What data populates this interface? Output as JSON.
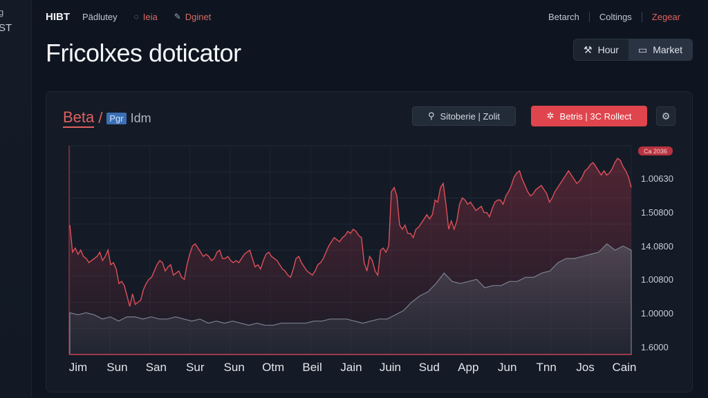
{
  "side": {
    "line1": "g",
    "line2": "ST"
  },
  "nav": {
    "brand": "HIBT",
    "links": [
      {
        "label": "Pädlutey",
        "icon": ""
      },
      {
        "label": "Ieia",
        "icon": "bubble-icon"
      },
      {
        "label": "Dginet",
        "icon": "pencil-icon"
      }
    ],
    "right": [
      {
        "label": "Betarch",
        "accent": false
      },
      {
        "label": "Coltings",
        "accent": false
      },
      {
        "label": "Zegear",
        "accent": true
      }
    ]
  },
  "page": {
    "title": "Fricolxes doticator"
  },
  "toggle": {
    "options": [
      {
        "label": "Hour",
        "icon": "tools-icon",
        "active": false
      },
      {
        "label": "Market",
        "icon": "card-icon",
        "active": true
      }
    ]
  },
  "panel": {
    "title_beta": "Beta",
    "title_sep": "/",
    "title_chip": "Pgr",
    "title_tail": "Idm",
    "btn_secondary": "Sitoberie | Zolit",
    "btn_primary": "Betris | 3C Rollect",
    "colors": {
      "accent": "#e0454d",
      "line": "#e0505a",
      "area": "#6b7280"
    }
  },
  "chart_data": {
    "type": "area",
    "x_labels": [
      "Jim",
      "Sun",
      "San",
      "Sur",
      "Sun",
      "Otm",
      "Beil",
      "Jain",
      "Juin",
      "Sud",
      "App",
      "Jun",
      "Tnn",
      "Jos",
      "Cain"
    ],
    "y_labels": [
      "1.00630",
      "1.50800",
      "14.0800",
      "1.00800",
      "1.00000",
      "1.6000"
    ],
    "price_tag": "Ca 2036",
    "series": [
      {
        "color": "#e0505a",
        "values": [
          62,
          49,
          51,
          48,
          50,
          47,
          46,
          44,
          45,
          46,
          47,
          49,
          45,
          47,
          50,
          43,
          44,
          41,
          34,
          35,
          33,
          28,
          23,
          29,
          24,
          25,
          26,
          31,
          34,
          36,
          37,
          40,
          43,
          45,
          44,
          40,
          42,
          43,
          38,
          39,
          40,
          37,
          36,
          43,
          48,
          52,
          53,
          51,
          49,
          47,
          48,
          47,
          45,
          46,
          49,
          50,
          46,
          46,
          47,
          45,
          44,
          45,
          44,
          46,
          48,
          49,
          50,
          46,
          42,
          43,
          41,
          45,
          48,
          49,
          47,
          46,
          45,
          43,
          41,
          40,
          38,
          37,
          41,
          46,
          47,
          44,
          42,
          40,
          39,
          38,
          40,
          43,
          44,
          46,
          49,
          52,
          54,
          56,
          55,
          54,
          56,
          57,
          59,
          58,
          60,
          59,
          57,
          56,
          44,
          40,
          47,
          45,
          40,
          38,
          50,
          51,
          49,
          52,
          78,
          80,
          76,
          62,
          60,
          62,
          58,
          58,
          56,
          60,
          61,
          63,
          65,
          67,
          65,
          67,
          74,
          73,
          80,
          82,
          72,
          60,
          64,
          60,
          64,
          72,
          75,
          74,
          72,
          73,
          71,
          69,
          70,
          71,
          68,
          68,
          66,
          70,
          73,
          74,
          74,
          72,
          76,
          78,
          81,
          85,
          87,
          88,
          84,
          81,
          78,
          76,
          77,
          79,
          80,
          81,
          79,
          77,
          73,
          75,
          78,
          80,
          82,
          84,
          86,
          88,
          86,
          84,
          82,
          83,
          85,
          88,
          89,
          91,
          92,
          90,
          88,
          86,
          88,
          86,
          87,
          89,
          92,
          94,
          93,
          90,
          88,
          85,
          80
        ]
      },
      {
        "color": "#6b7280",
        "values": [
          20,
          19,
          20,
          19,
          17,
          18,
          16,
          18,
          18,
          17,
          18,
          17,
          17,
          18,
          17,
          16,
          17,
          15,
          16,
          15,
          16,
          15,
          14,
          15,
          14,
          14,
          15,
          15,
          15,
          15,
          16,
          16,
          17,
          17,
          17,
          16,
          15,
          16,
          17,
          17,
          19,
          21,
          25,
          28,
          30,
          34,
          39,
          35,
          34,
          35,
          36,
          32,
          33,
          33,
          35,
          35,
          37,
          37,
          39,
          40,
          44,
          46,
          46,
          47,
          48,
          49,
          53,
          50,
          52,
          50
        ]
      }
    ],
    "grid": true
  }
}
